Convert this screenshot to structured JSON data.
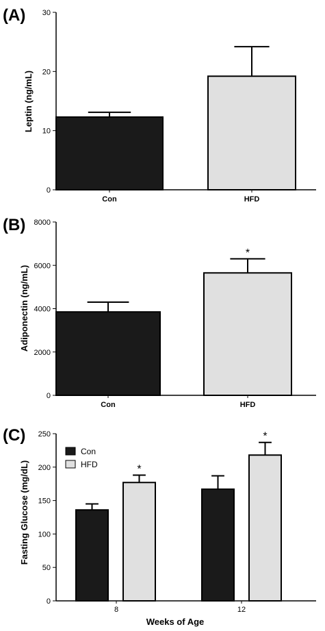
{
  "chart_data": [
    {
      "panel_label": "(A)",
      "type": "bar",
      "ylabel": "Leptin (ng/mL)",
      "xlabel": "",
      "ylim": [
        0,
        30
      ],
      "yticks": [
        0,
        10,
        20,
        30
      ],
      "categories": [
        "Con",
        "HFD"
      ],
      "values": [
        12.3,
        19.2
      ],
      "errors": [
        0.8,
        5.0
      ],
      "colors": [
        "#1a1a1a",
        "#e0e0e0"
      ],
      "annotations": [
        "",
        ""
      ]
    },
    {
      "panel_label": "(B)",
      "type": "bar",
      "ylabel": "Adiponectin (ng/mL)",
      "xlabel": "",
      "ylim": [
        0,
        8000
      ],
      "yticks": [
        0,
        2000,
        4000,
        6000,
        8000
      ],
      "categories": [
        "Con",
        "HFD"
      ],
      "values": [
        3850,
        5650
      ],
      "errors": [
        450,
        650
      ],
      "colors": [
        "#1a1a1a",
        "#e0e0e0"
      ],
      "annotations": [
        "",
        "*"
      ]
    },
    {
      "panel_label": "(C)",
      "type": "bar",
      "ylabel": "Fasting Glucose (mg/dL)",
      "xlabel": "Weeks of Age",
      "ylim": [
        0,
        250
      ],
      "yticks": [
        0,
        50,
        100,
        150,
        200,
        250
      ],
      "categories": [
        "8",
        "12"
      ],
      "series": [
        {
          "name": "Con",
          "color": "#1a1a1a",
          "values": [
            136,
            167
          ],
          "errors": [
            9,
            20
          ],
          "annotations": [
            "",
            ""
          ]
        },
        {
          "name": "HFD",
          "color": "#e0e0e0",
          "values": [
            177,
            218
          ],
          "errors": [
            11,
            19
          ],
          "annotations": [
            "*",
            "*"
          ]
        }
      ],
      "legend_position": "top-left"
    }
  ]
}
